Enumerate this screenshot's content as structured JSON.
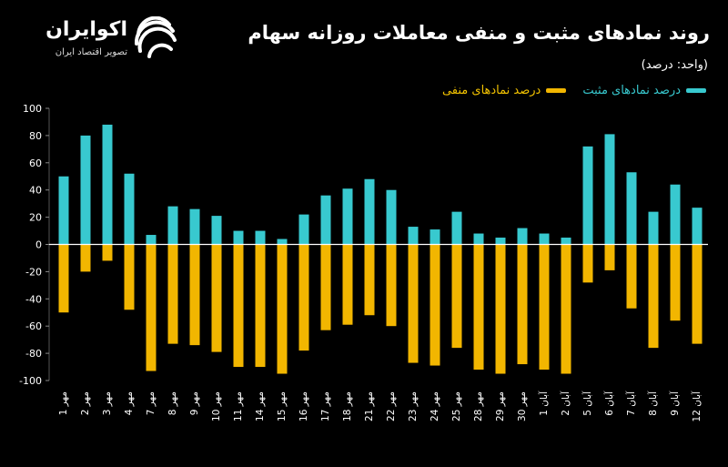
{
  "header": {
    "title": "روند نمادهای مثبت و منفی معاملات روزانه سهام",
    "unit": "(واحد: درصد)"
  },
  "logo": {
    "name": "اکوایران",
    "tagline": "تصویر اقتصاد ایران"
  },
  "legend": {
    "positive": "درصد نمادهای مثبت",
    "negative": "درصد نمادهای منفی"
  },
  "colors": {
    "positive": "#38c9cf",
    "negative": "#f2b600",
    "background": "#000000",
    "grid": "#2a2a2a"
  },
  "chart_data": {
    "type": "bar",
    "ylim": [
      -100,
      100
    ],
    "yticks": [
      100,
      80,
      60,
      40,
      20,
      0,
      -20,
      -40,
      -60,
      -80,
      -100
    ],
    "ytick_labels": [
      "100",
      "80",
      "60",
      "40",
      "20",
      "0",
      "-20",
      "-40",
      "-60",
      "-80",
      "-100"
    ],
    "categories": [
      "1 مهر",
      "2 مهر",
      "3 مهر",
      "4 مهر",
      "7 مهر",
      "8 مهر",
      "9 مهر",
      "10 مهر",
      "11 مهر",
      "14 مهر",
      "15 مهر",
      "16 مهر",
      "17 مهر",
      "18 مهر",
      "21 مهر",
      "22 مهر",
      "23 مهر",
      "24 مهر",
      "25 مهر",
      "28 مهر",
      "29 مهر",
      "30 مهر",
      "1 آبان",
      "2 آبان",
      "5 آبان",
      "6 آبان",
      "7 آبان",
      "8 آبان",
      "9 آبان",
      "12 آبان"
    ],
    "series": [
      {
        "name": "درصد نمادهای مثبت",
        "values": [
          50,
          80,
          88,
          52,
          7,
          28,
          26,
          21,
          10,
          10,
          4,
          22,
          36,
          41,
          48,
          40,
          13,
          11,
          24,
          8,
          5,
          12,
          8,
          5,
          72,
          81,
          53,
          24,
          44,
          27
        ]
      },
      {
        "name": "درصد نمادهای منفی",
        "values": [
          -50,
          -20,
          -12,
          -48,
          -93,
          -73,
          -74,
          -79,
          -90,
          -90,
          -95,
          -78,
          -63,
          -59,
          -52,
          -60,
          -87,
          -89,
          -76,
          -92,
          -95,
          -88,
          -92,
          -95,
          -28,
          -19,
          -47,
          -76,
          -56,
          -73
        ]
      }
    ]
  }
}
